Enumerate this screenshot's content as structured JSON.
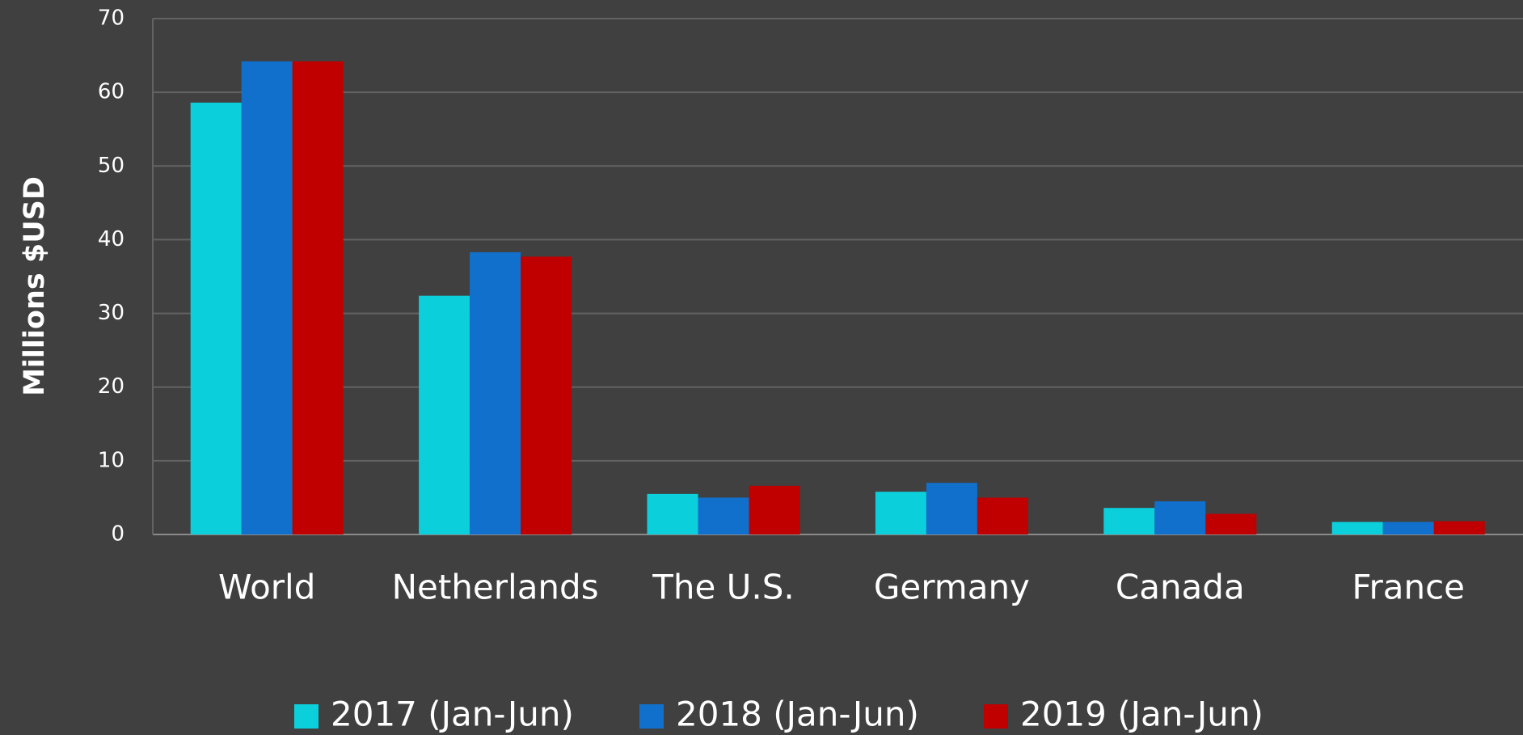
{
  "chart_data": {
    "type": "bar",
    "y_label": "Millions $USD",
    "categories": [
      "World",
      "Netherlands",
      "The U.S.",
      "Germany",
      "Canada",
      "France"
    ],
    "series": [
      {
        "name": "2017 (Jan-Jun)",
        "color": "#0bcfda",
        "values": [
          58.6,
          32.4,
          5.5,
          5.8,
          3.6,
          1.7
        ]
      },
      {
        "name": "2018 (Jan-Jun)",
        "color": "#1170cc",
        "values": [
          64.2,
          38.3,
          5.0,
          7.0,
          4.5,
          1.7
        ]
      },
      {
        "name": "2019 (Jan-Jun)",
        "color": "#c00000",
        "values": [
          64.2,
          37.7,
          6.6,
          5.0,
          2.8,
          1.8
        ]
      }
    ],
    "ylim": [
      0,
      70
    ],
    "yticks": [
      0,
      10,
      20,
      30,
      40,
      50,
      60,
      70
    ],
    "grid": true,
    "legend": "bottom"
  }
}
